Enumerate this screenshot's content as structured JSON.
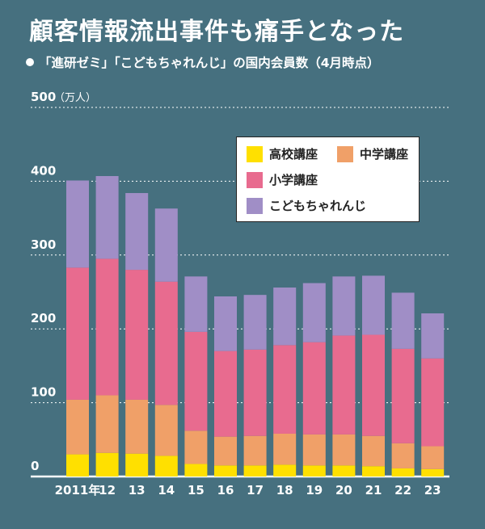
{
  "title": "顧客情報流出事件も痛手となった",
  "subtitle": "「進研ゼミ」「こどもちゃれんじ」の国内会員数（4月時点）",
  "colors": {
    "background": "#46707f",
    "koko": "#ffe000",
    "chugaku": "#f0a068",
    "shogaku": "#e86b8f",
    "kodomo": "#a08ec6"
  },
  "chart_data": {
    "type": "bar",
    "stacked": true,
    "categories": [
      "2011年",
      "12",
      "13",
      "14",
      "15",
      "16",
      "17",
      "18",
      "19",
      "20",
      "21",
      "22",
      "23"
    ],
    "y_unit": "（万人）",
    "ylim": [
      0,
      500
    ],
    "yticks": [
      "0",
      "100",
      "200",
      "300",
      "400",
      "500"
    ],
    "grid": true,
    "legend_position": "top-right",
    "series": [
      {
        "name": "高校講座",
        "color": "#ffe000",
        "values": [
          30,
          32,
          31,
          28,
          17,
          15,
          15,
          16,
          15,
          15,
          14,
          11,
          10
        ]
      },
      {
        "name": "中学講座",
        "color": "#f0a068",
        "values": [
          74,
          78,
          73,
          69,
          45,
          39,
          40,
          42,
          42,
          42,
          41,
          34,
          31
        ]
      },
      {
        "name": "小学講座",
        "color": "#e86b8f",
        "values": [
          179,
          185,
          176,
          167,
          134,
          116,
          117,
          120,
          125,
          134,
          137,
          128,
          119
        ]
      },
      {
        "name": "こどもちゃれんじ",
        "color": "#a08ec6",
        "values": [
          118,
          112,
          104,
          99,
          75,
          74,
          74,
          78,
          80,
          80,
          80,
          76,
          61
        ]
      }
    ]
  }
}
